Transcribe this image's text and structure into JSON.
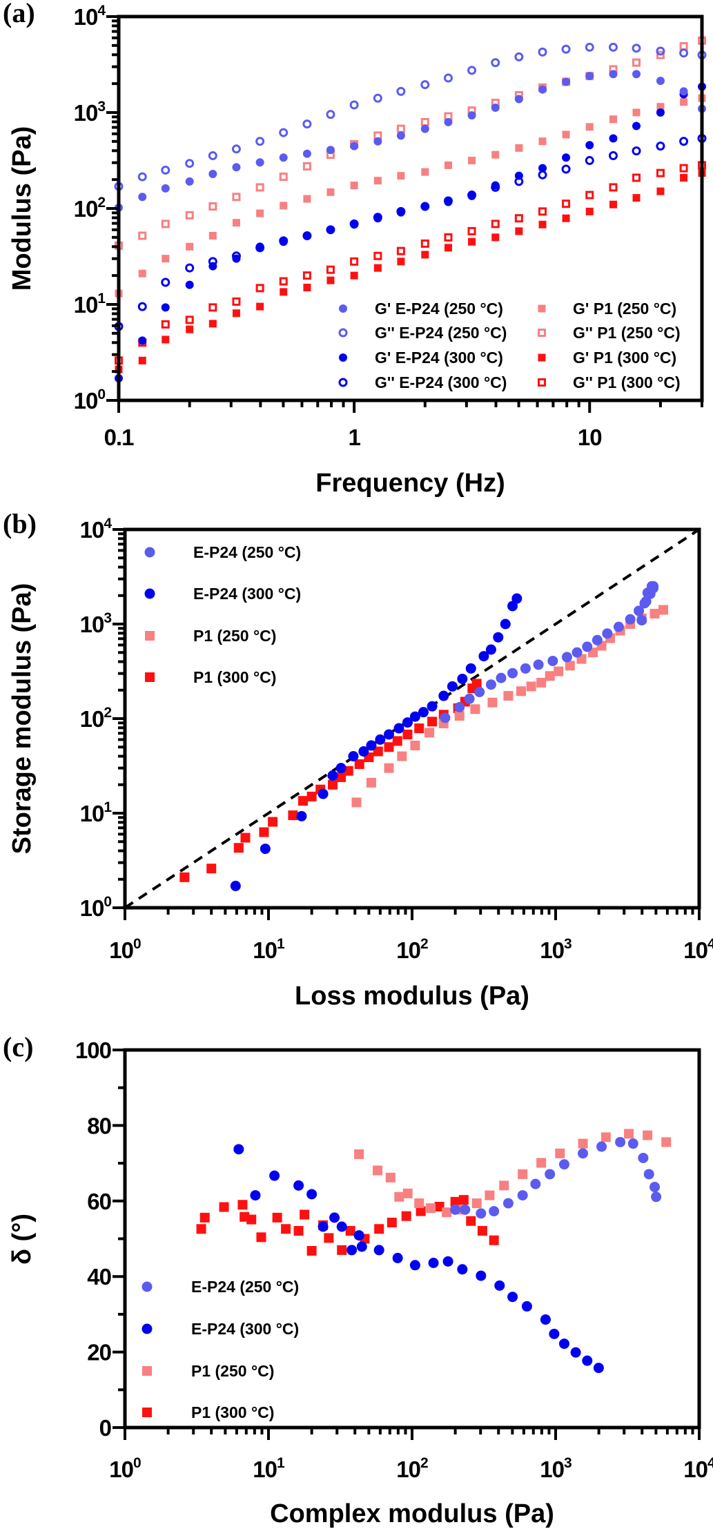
{
  "chart_data": [
    {
      "panel_label": "(a)",
      "type": "scatter",
      "title": "",
      "xlabel": "Frequency (Hz)",
      "ylabel": "Modulus (Pa)",
      "xscale": "log",
      "yscale": "log",
      "xlim": [
        0.1,
        30
      ],
      "ylim": [
        1,
        10000
      ],
      "grid": false,
      "legend": "bottom-right",
      "xticks": [
        {
          "value": 0.1,
          "text": "0.1"
        },
        {
          "value": 1,
          "text": "1"
        },
        {
          "value": 10,
          "text": "10"
        }
      ],
      "yticks": [
        {
          "value": 1,
          "base": "10",
          "exp": "0"
        },
        {
          "value": 10,
          "base": "10",
          "exp": "1"
        },
        {
          "value": 100,
          "base": "10",
          "exp": "2"
        },
        {
          "value": 1000,
          "base": "10",
          "exp": "3"
        },
        {
          "value": 10000,
          "base": "10",
          "exp": "4"
        }
      ],
      "x": [
        0.1,
        0.126,
        0.158,
        0.2,
        0.251,
        0.316,
        0.398,
        0.501,
        0.631,
        0.794,
        1,
        1.26,
        1.58,
        2,
        2.51,
        3.16,
        3.98,
        5.01,
        6.31,
        7.94,
        10,
        12.6,
        15.8,
        20,
        25.1,
        30
      ],
      "series": [
        {
          "name": "G'  E-P24 (250 °C)",
          "color": "#5b5bf0",
          "marker": "circle",
          "filled": true,
          "y": [
            102,
            132,
            162,
            191,
            229,
            269,
            302,
            339,
            372,
            407,
            447,
            501,
            575,
            676,
            794,
            933,
            1122,
            1380,
            1738,
            2089,
            2399,
            2512,
            2512,
            2138,
            1660,
            1096
          ]
        },
        {
          "name": "G'' E-P24 (250 °C)",
          "color": "#5b5bf0",
          "marker": "circle",
          "filled": false,
          "y": [
            170,
            214,
            251,
            295,
            355,
            417,
            501,
            617,
            759,
            955,
            1200,
            1410,
            1660,
            1950,
            2290,
            2750,
            3310,
            3800,
            4270,
            4570,
            4790,
            4790,
            4680,
            4370,
            4170,
            3980
          ]
        },
        {
          "name": "G'  E-P24 (300 °C)",
          "color": "#0000f0",
          "marker": "circle",
          "filled": true,
          "y": [
            1.7,
            4.2,
            9.3,
            16,
            25,
            30,
            40,
            45,
            52,
            60,
            68,
            79,
            91,
            105,
            117,
            135,
            174,
            219,
            263,
            339,
            457,
            537,
            724,
            1000,
            1549,
            1862
          ]
        },
        {
          "name": "G'' E-P24 (300 °C)",
          "color": "#0000f0",
          "marker": "circle",
          "filled": false,
          "y": [
            5.9,
            9.5,
            17,
            24,
            28,
            32,
            39,
            46,
            52,
            60,
            69,
            81,
            93,
            105,
            120,
            138,
            166,
            191,
            224,
            257,
            316,
            355,
            398,
            447,
            501,
            537
          ]
        },
        {
          "name": "G'  P1 (250 °C)",
          "color": "#f88080",
          "marker": "square",
          "filled": true,
          "y": [
            13,
            21,
            30,
            40,
            52,
            71,
            89,
            107,
            126,
            148,
            174,
            195,
            219,
            240,
            282,
            316,
            363,
            427,
            501,
            589,
            708,
            851,
            1000,
            1148,
            1288,
            1413
          ]
        },
        {
          "name": "G'' P1 (250 °C)",
          "color": "#f88080",
          "marker": "square",
          "filled": false,
          "y": [
            41,
            52,
            69,
            85,
            105,
            132,
            166,
            214,
            275,
            363,
            468,
            575,
            676,
            794,
            912,
            1047,
            1259,
            1514,
            1820,
            2089,
            2399,
            2818,
            3311,
            3981,
            4898,
            5623
          ]
        },
        {
          "name": "G'  P1 (300 °C)",
          "color": "#ff1010",
          "marker": "square",
          "filled": true,
          "y": [
            2.1,
            2.6,
            4.3,
            5.5,
            6.3,
            8.1,
            9.5,
            13.5,
            15,
            17.8,
            20,
            24,
            28,
            33,
            39,
            45,
            50,
            58,
            68,
            79,
            93,
            110,
            129,
            151,
            209,
            234
          ]
        },
        {
          "name": "G'' P1 (300 °C)",
          "color": "#ff1010",
          "marker": "square",
          "filled": false,
          "y": [
            2.6,
            4,
            6.2,
            6.9,
            9.3,
            10.7,
            14.8,
            17.4,
            20,
            23,
            28,
            32,
            36,
            43,
            50,
            58,
            69,
            79,
            93,
            112,
            138,
            166,
            209,
            234,
            263,
            282
          ]
        }
      ]
    },
    {
      "panel_label": "(b)",
      "type": "scatter",
      "title": "",
      "xlabel": "Loss modulus (Pa)",
      "ylabel": "Storage modulus (Pa)",
      "xscale": "log",
      "yscale": "log",
      "xlim": [
        1,
        10000
      ],
      "ylim": [
        1,
        10000
      ],
      "grid": false,
      "legend": "top-left",
      "reference_line": "y = x (dashed)",
      "xticks": [
        {
          "value": 1,
          "base": "10",
          "exp": "0"
        },
        {
          "value": 10,
          "base": "10",
          "exp": "1"
        },
        {
          "value": 100,
          "base": "10",
          "exp": "2"
        },
        {
          "value": 1000,
          "base": "10",
          "exp": "3"
        },
        {
          "value": 10000,
          "base": "10",
          "exp": "4"
        }
      ],
      "yticks": [
        {
          "value": 1,
          "base": "10",
          "exp": "0"
        },
        {
          "value": 10,
          "base": "10",
          "exp": "1"
        },
        {
          "value": 100,
          "base": "10",
          "exp": "2"
        },
        {
          "value": 1000,
          "base": "10",
          "exp": "3"
        },
        {
          "value": 10000,
          "base": "10",
          "exp": "4"
        }
      ],
      "series": [
        {
          "name": "E-P24 (250 °C)",
          "color": "#5b5bf0",
          "marker": "circle",
          "filled": true,
          "x": [
            170,
            214,
            251,
            295,
            355,
            417,
            501,
            617,
            759,
            955,
            1200,
            1410,
            1660,
            1950,
            2290,
            2750,
            3310,
            3800,
            4270,
            4570,
            4790,
            4790,
            4680,
            4370,
            4170,
            3980
          ],
          "y": [
            102,
            132,
            162,
            191,
            229,
            269,
            302,
            339,
            372,
            407,
            447,
            501,
            575,
            676,
            794,
            933,
            1122,
            1380,
            1738,
            2089,
            2399,
            2512,
            2512,
            2138,
            1660,
            1096
          ]
        },
        {
          "name": "E-P24 (300 °C)",
          "color": "#0000f0",
          "marker": "circle",
          "filled": true,
          "x": [
            5.9,
            9.5,
            17,
            24,
            28,
            32,
            39,
            46,
            52,
            60,
            69,
            81,
            93,
            105,
            120,
            138,
            166,
            191,
            224,
            257,
            316,
            355,
            398,
            447,
            501,
            537
          ],
          "y": [
            1.7,
            4.2,
            9.3,
            16,
            25,
            30,
            40,
            45,
            52,
            60,
            68,
            79,
            91,
            105,
            117,
            135,
            174,
            219,
            263,
            339,
            457,
            537,
            724,
            1000,
            1549,
            1862
          ]
        },
        {
          "name": "P1 (250 °C)",
          "color": "#f88080",
          "marker": "square",
          "filled": true,
          "x": [
            41,
            52,
            69,
            85,
            105,
            132,
            166,
            214,
            275,
            363,
            468,
            575,
            676,
            794,
            912,
            1047,
            1259,
            1514,
            1820,
            2089,
            2399,
            2818,
            3311,
            3981,
            4898,
            5623
          ],
          "y": [
            13,
            21,
            30,
            40,
            52,
            71,
            89,
            107,
            126,
            148,
            174,
            195,
            219,
            240,
            282,
            316,
            363,
            427,
            501,
            589,
            708,
            851,
            1000,
            1148,
            1288,
            1413
          ]
        },
        {
          "name": "P1 (300 °C)",
          "color": "#ff1010",
          "marker": "square",
          "filled": true,
          "x": [
            2.6,
            4,
            6.2,
            6.9,
            9.3,
            10.7,
            14.8,
            17.4,
            20,
            23,
            28,
            32,
            36,
            43,
            50,
            58,
            69,
            79,
            93,
            112,
            138,
            166,
            209,
            234,
            263,
            282
          ],
          "y": [
            2.1,
            2.6,
            4.3,
            5.5,
            6.3,
            8.1,
            9.5,
            13.5,
            15,
            17.8,
            20,
            24,
            28,
            33,
            39,
            45,
            50,
            58,
            68,
            79,
            93,
            110,
            129,
            151,
            209,
            234
          ]
        }
      ]
    },
    {
      "panel_label": "(c)",
      "type": "scatter",
      "title": "",
      "xlabel": "Complex modulus (Pa)",
      "ylabel": "δ (°)",
      "xscale": "log",
      "yscale": "linear",
      "xlim": [
        1,
        10000
      ],
      "ylim": [
        0,
        100
      ],
      "grid": false,
      "legend": "bottom-left",
      "xticks": [
        {
          "value": 1,
          "base": "10",
          "exp": "0"
        },
        {
          "value": 10,
          "base": "10",
          "exp": "1"
        },
        {
          "value": 100,
          "base": "10",
          "exp": "2"
        },
        {
          "value": 1000,
          "base": "10",
          "exp": "3"
        },
        {
          "value": 10000,
          "base": "10",
          "exp": "4"
        }
      ],
      "yticks": [
        {
          "value": 0,
          "text": "0"
        },
        {
          "value": 20,
          "text": "20"
        },
        {
          "value": 40,
          "text": "40"
        },
        {
          "value": 60,
          "text": "60"
        },
        {
          "value": 80,
          "text": "80"
        },
        {
          "value": 100,
          "text": "100"
        }
      ],
      "series": [
        {
          "name": "E-P24 (250 °C)",
          "color": "#5b5bf0",
          "marker": "circle",
          "filled": true,
          "x": [
            200,
            234,
            302,
            372,
            468,
            589,
            724,
            912,
            1148,
            1549,
            2089,
            2818,
            3467,
            4074,
            4467,
            4898,
            5012
          ],
          "y": [
            57.7,
            57.7,
            56.7,
            57.3,
            59.4,
            61.5,
            64.5,
            67.1,
            69.7,
            72.6,
            74.4,
            75.6,
            75.2,
            71.4,
            67.1,
            63.7,
            61.1
          ]
        },
        {
          "name": "E-P24 (300 °C)",
          "color": "#0000f0",
          "marker": "circle",
          "filled": true,
          "x": [
            6.2,
            8.1,
            11,
            16.2,
            20,
            24,
            28.8,
            32.4,
            38,
            42.7,
            44.7,
            58.9,
            79.4,
            105,
            141,
            178,
            224,
            302,
            407,
            501,
            631,
            851,
            977,
            1148,
            1380,
            1660,
            1995
          ],
          "y": [
            73.7,
            61.5,
            66.7,
            64.1,
            61.8,
            53.2,
            55.6,
            53.2,
            47,
            50.9,
            47.9,
            47,
            44.9,
            43,
            43.6,
            44,
            41.9,
            40.2,
            37.6,
            34.6,
            32.1,
            28.6,
            24.8,
            22.2,
            19.9,
            17.7,
            15.8
          ]
        },
        {
          "name": "P1 (250 °C)",
          "color": "#f88080",
          "marker": "square",
          "filled": true,
          "x": [
            42.7,
            57.5,
            70.8,
            81.3,
            93.3,
            112,
            135,
            174,
            224,
            282,
            347,
            437,
            589,
            794,
            1072,
            1549,
            2239,
            3236,
            4365,
            5888
          ],
          "y": [
            72.4,
            68.1,
            66.2,
            61.1,
            62,
            59.4,
            58.1,
            57,
            57.7,
            59.4,
            61.5,
            64.1,
            67.1,
            70.1,
            72.6,
            75.2,
            76.9,
            77.8,
            77.4,
            75.6
          ]
        },
        {
          "name": "P1 (300 °C)",
          "color": "#ff1010",
          "marker": "square",
          "filled": true,
          "x": [
            3.4,
            3.6,
            4.9,
            6.6,
            6.8,
            7.6,
            8.9,
            11.5,
            13.2,
            16.2,
            17.8,
            20,
            24,
            26.3,
            32.4,
            37.2,
            46.8,
            58.9,
            72.4,
            91.2,
            115,
            155,
            200,
            229,
            257,
            309,
            372
          ],
          "y": [
            52.6,
            55.6,
            58.4,
            59,
            55.8,
            55.1,
            50.4,
            55.6,
            52.6,
            52.1,
            56.4,
            46.8,
            53.6,
            50.2,
            47,
            52.1,
            50,
            52.6,
            54.3,
            56,
            57.3,
            58.5,
            59.8,
            60.3,
            54.7,
            52.1,
            49.6
          ]
        }
      ]
    }
  ]
}
